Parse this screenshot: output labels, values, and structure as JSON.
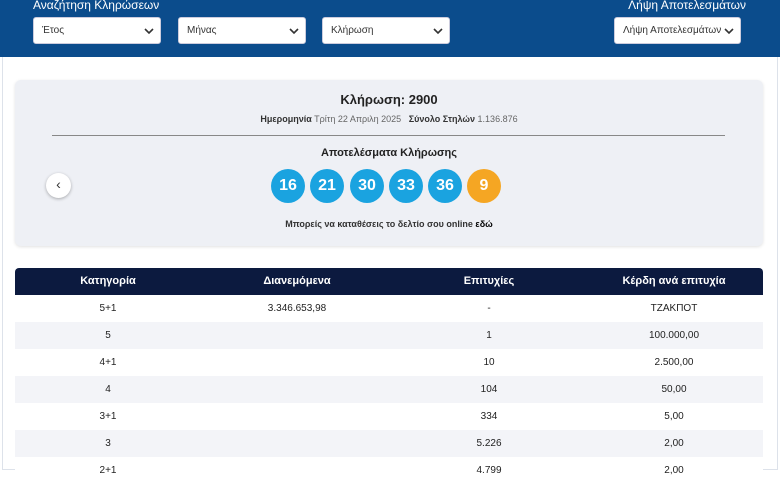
{
  "header": {
    "search_label": "Αναζήτηση Κληρώσεων",
    "selects": [
      "Έτος",
      "Μήνας",
      "Κλήρωση"
    ],
    "download_label": "Λήψη Αποτελεσμάτων",
    "download_select": "Λήψη Αποτελεσμάτων"
  },
  "draw": {
    "title": "Κλήρωση: 2900",
    "date_label": "Ημερομηνία",
    "date": "Τρίτη 22 Απριλη 2025",
    "columns_label": "Σύνολο Στηλών",
    "columns": "1.136.876",
    "results_title": "Αποτελέσματα Κλήρωσης",
    "numbers": [
      16,
      21,
      30,
      33,
      36
    ],
    "joker": 9,
    "note": "Μπορείς να καταθέσεις το δελτίο σου online",
    "note_link": "εδώ"
  },
  "table": {
    "headers": [
      "Κατηγορία",
      "Διανεμόμενα",
      "Επιτυχίες",
      "Κέρδη ανά επιτυχία"
    ],
    "rows": [
      {
        "category": "5+1",
        "distributed": "3.346.653,98",
        "winners": "-",
        "prize": "ΤΖΑΚΠΟΤ"
      },
      {
        "category": "5",
        "winners": "1",
        "prize": "100.000,00"
      },
      {
        "category": "4+1",
        "winners": "10",
        "prize": "2.500,00"
      },
      {
        "category": "4",
        "winners": "104",
        "prize": "50,00"
      },
      {
        "category": "3+1",
        "winners": "334",
        "prize": "5,00"
      },
      {
        "category": "3",
        "winners": "5.226",
        "prize": "2,00"
      },
      {
        "category": "2+1",
        "winners": "4.799",
        "prize": "2,00"
      }
    ]
  }
}
